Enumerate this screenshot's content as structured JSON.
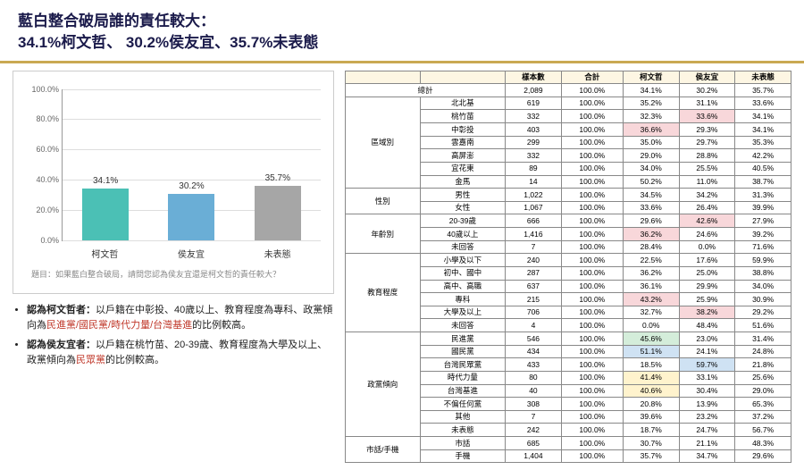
{
  "title_line1": "藍白整合破局誰的責任較大：",
  "title_line2": "34.1%柯文哲、 30.2%侯友宜、35.7%未表態",
  "chart": {
    "type": "bar",
    "ylim": [
      0,
      100
    ],
    "ytick_step": 20,
    "grid_color": "#dddddd",
    "categories": [
      "柯文哲",
      "侯友宜",
      "未表態"
    ],
    "values": [
      34.1,
      30.2,
      35.7
    ],
    "bar_colors": [
      "#4bc0b5",
      "#6aaed6",
      "#a6a6a6"
    ],
    "question_prefix": "題目：",
    "question_text": "如果藍白整合破局，請問您認為侯友宜還是柯文哲的責任較大？"
  },
  "notes": [
    {
      "bold": "認為柯文哲者：",
      "text_pre": "以戶籍在中彰投、40歲以上、教育程度為專科、政黨傾向為",
      "hl": "民進黨/國民黨/時代力量/台灣基進",
      "text_post": "的比例較高。"
    },
    {
      "bold": "認為侯友宜者：",
      "text_pre": "以戶籍在桃竹苗、20-39歲、教育程度為大學及以上、政黨傾向為",
      "hl": "民眾黨",
      "text_post": "的比例較高。"
    }
  ],
  "table": {
    "headers": [
      "",
      "",
      "樣本數",
      "合計",
      "柯文哲",
      "侯友宜",
      "未表態"
    ],
    "total_row": [
      "總計",
      "2,089",
      "100.0%",
      "34.1%",
      "30.2%",
      "35.7%"
    ],
    "groups": [
      {
        "name": "區域別",
        "rows": [
          [
            "北北基",
            "619",
            "100.0%",
            "35.2%",
            "31.1%",
            "33.6%",
            []
          ],
          [
            "桃竹苗",
            "332",
            "100.0%",
            "32.3%",
            "33.6%",
            "34.1%",
            [
              {
                "c": 4,
                "k": "hl-pink"
              }
            ]
          ],
          [
            "中彰投",
            "403",
            "100.0%",
            "36.6%",
            "29.3%",
            "34.1%",
            [
              {
                "c": 3,
                "k": "hl-pink"
              }
            ]
          ],
          [
            "雲嘉南",
            "299",
            "100.0%",
            "35.0%",
            "29.7%",
            "35.3%",
            []
          ],
          [
            "高屏澎",
            "332",
            "100.0%",
            "29.0%",
            "28.8%",
            "42.2%",
            []
          ],
          [
            "宜花東",
            "89",
            "100.0%",
            "34.0%",
            "25.5%",
            "40.5%",
            []
          ],
          [
            "金馬",
            "14",
            "100.0%",
            "50.2%",
            "11.0%",
            "38.7%",
            []
          ]
        ]
      },
      {
        "name": "性別",
        "rows": [
          [
            "男性",
            "1,022",
            "100.0%",
            "34.5%",
            "34.2%",
            "31.3%",
            []
          ],
          [
            "女性",
            "1,067",
            "100.0%",
            "33.6%",
            "26.4%",
            "39.9%",
            []
          ]
        ]
      },
      {
        "name": "年齡別",
        "rows": [
          [
            "20-39歲",
            "666",
            "100.0%",
            "29.6%",
            "42.6%",
            "27.9%",
            [
              {
                "c": 4,
                "k": "hl-pink"
              }
            ]
          ],
          [
            "40歲以上",
            "1,416",
            "100.0%",
            "36.2%",
            "24.6%",
            "39.2%",
            [
              {
                "c": 3,
                "k": "hl-pink"
              }
            ]
          ],
          [
            "未回答",
            "7",
            "100.0%",
            "28.4%",
            "0.0%",
            "71.6%",
            []
          ]
        ]
      },
      {
        "name": "教育程度",
        "rows": [
          [
            "小學及以下",
            "240",
            "100.0%",
            "22.5%",
            "17.6%",
            "59.9%",
            []
          ],
          [
            "初中、國中",
            "287",
            "100.0%",
            "36.2%",
            "25.0%",
            "38.8%",
            []
          ],
          [
            "高中、高職",
            "637",
            "100.0%",
            "36.1%",
            "29.9%",
            "34.0%",
            []
          ],
          [
            "專科",
            "215",
            "100.0%",
            "43.2%",
            "25.9%",
            "30.9%",
            [
              {
                "c": 3,
                "k": "hl-pink"
              }
            ]
          ],
          [
            "大學及以上",
            "706",
            "100.0%",
            "32.7%",
            "38.2%",
            "29.2%",
            [
              {
                "c": 4,
                "k": "hl-pink"
              }
            ]
          ],
          [
            "未回答",
            "4",
            "100.0%",
            "0.0%",
            "48.4%",
            "51.6%",
            []
          ]
        ]
      },
      {
        "name": "政黨傾向",
        "rows": [
          [
            "民進黨",
            "546",
            "100.0%",
            "45.6%",
            "23.0%",
            "31.4%",
            [
              {
                "c": 3,
                "k": "hl-green"
              }
            ]
          ],
          [
            "國民黨",
            "434",
            "100.0%",
            "51.1%",
            "24.1%",
            "24.8%",
            [
              {
                "c": 3,
                "k": "hl-blue"
              }
            ]
          ],
          [
            "台灣民眾黨",
            "433",
            "100.0%",
            "18.5%",
            "59.7%",
            "21.8%",
            [
              {
                "c": 4,
                "k": "hl-blue"
              }
            ]
          ],
          [
            "時代力量",
            "80",
            "100.0%",
            "41.4%",
            "33.1%",
            "25.6%",
            [
              {
                "c": 3,
                "k": "hl-yellow"
              }
            ]
          ],
          [
            "台灣基進",
            "40",
            "100.0%",
            "40.6%",
            "30.4%",
            "29.0%",
            [
              {
                "c": 3,
                "k": "hl-yellow"
              }
            ]
          ],
          [
            "不偏任何黨",
            "308",
            "100.0%",
            "20.8%",
            "13.9%",
            "65.3%",
            []
          ],
          [
            "其他",
            "7",
            "100.0%",
            "39.6%",
            "23.2%",
            "37.2%",
            []
          ],
          [
            "未表態",
            "242",
            "100.0%",
            "18.7%",
            "24.7%",
            "56.7%",
            []
          ]
        ]
      },
      {
        "name": "市話/手機",
        "rows": [
          [
            "市話",
            "685",
            "100.0%",
            "30.7%",
            "21.1%",
            "48.3%",
            []
          ],
          [
            "手機",
            "1,404",
            "100.0%",
            "35.7%",
            "34.7%",
            "29.6%",
            []
          ]
        ]
      }
    ]
  }
}
